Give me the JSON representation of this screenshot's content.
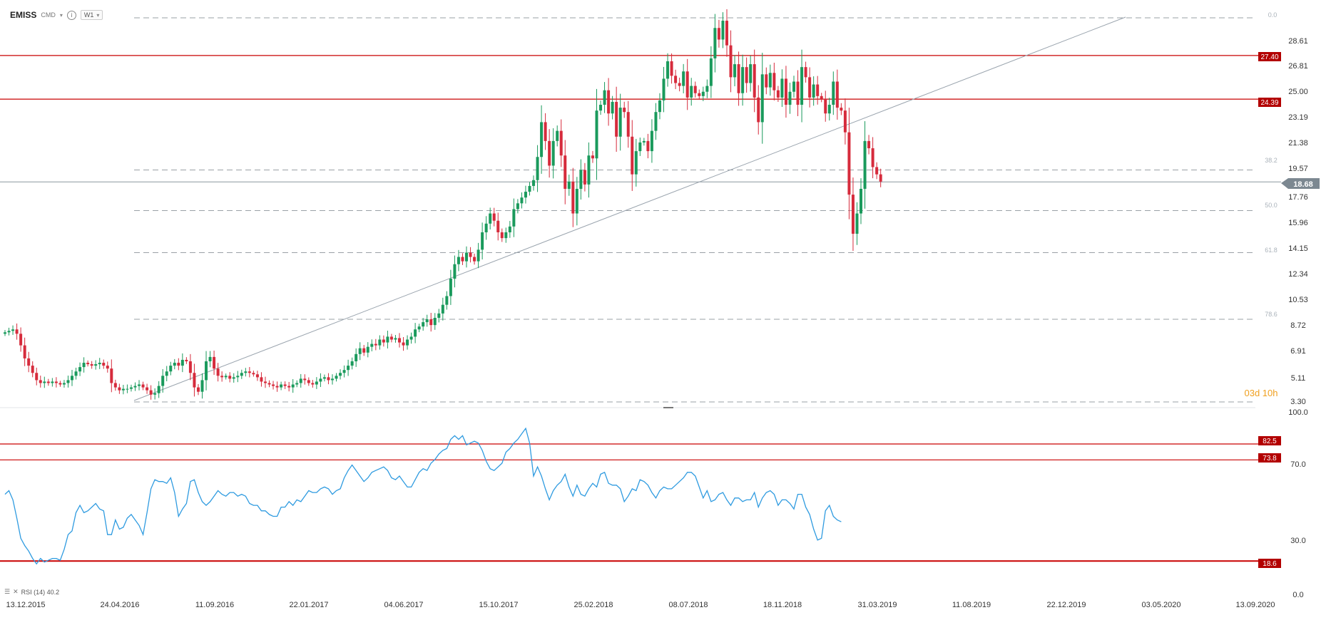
{
  "header": {
    "symbol": "EMISS",
    "market": "CMD",
    "info_icon": "info-icon",
    "timeframe": "W1",
    "dropdown_icon": "chevron-down-icon"
  },
  "price_axis": {
    "ticks": [
      "28.61",
      "26.81",
      "25.00",
      "23.19",
      "21.38",
      "19.57",
      "17.76",
      "15.96",
      "14.15",
      "12.34",
      "10.53",
      "8.72",
      "6.91",
      "5.11",
      "3.30"
    ],
    "top_label": "0.0",
    "current_price": "18.68",
    "countdown": "03d 10h"
  },
  "fib_labels": {
    "f38": "38.2",
    "f50": "50.0",
    "f618": "61.8",
    "f786": "78.6"
  },
  "horizontal_levels": {
    "resistance_1": "27.40",
    "resistance_2": "24.39"
  },
  "rsi": {
    "label": "RSI (14) 40.2",
    "axis_ticks": [
      "100.0",
      "70.0",
      "30.0",
      "0.0"
    ],
    "levels": [
      "82.5",
      "73.8",
      "18.6"
    ]
  },
  "date_axis": [
    "13.12.2015",
    "24.04.2016",
    "11.09.2016",
    "22.01.2017",
    "04.06.2017",
    "15.10.2017",
    "25.02.2018",
    "08.07.2018",
    "18.11.2018",
    "31.03.2019",
    "11.08.2019",
    "22.12.2019",
    "03.05.2020",
    "13.09.2020"
  ],
  "colors": {
    "up": "#1a9a5c",
    "down": "#d62b3c",
    "level_line": "#c90000",
    "rsi_line": "#2f9be0",
    "trend": "#9aa4ae"
  },
  "chart_data": [
    {
      "type": "candlestick",
      "title": "EMISS",
      "timeframe": "W1",
      "ylim": [
        3.3,
        30.4
      ],
      "weekly_close_series": [
        8.3,
        8.4,
        8.5,
        8.2,
        7.4,
        6.5,
        6.0,
        5.5,
        5.0,
        4.8,
        4.9,
        4.8,
        4.9,
        4.8,
        4.7,
        4.8,
        5.0,
        5.3,
        5.6,
        5.9,
        6.2,
        6.1,
        6.0,
        6.1,
        6.2,
        6.0,
        5.8,
        4.8,
        4.5,
        4.3,
        4.4,
        4.4,
        4.5,
        4.6,
        4.7,
        4.5,
        4.3,
        4.0,
        4.1,
        4.6,
        5.3,
        5.6,
        6.0,
        6.2,
        6.0,
        6.4,
        6.3,
        5.5,
        4.5,
        4.2,
        5.0,
        6.3,
        6.6,
        5.8,
        5.3,
        5.2,
        5.3,
        5.1,
        5.2,
        5.3,
        5.5,
        5.6,
        5.5,
        5.4,
        5.2,
        4.9,
        4.8,
        4.7,
        4.6,
        4.5,
        4.7,
        4.6,
        4.5,
        4.7,
        4.8,
        5.1,
        5.0,
        4.8,
        4.7,
        4.9,
        5.1,
        5.2,
        5.0,
        5.1,
        5.3,
        5.5,
        5.7,
        6.0,
        6.3,
        6.8,
        7.2,
        6.9,
        7.3,
        7.5,
        7.4,
        7.8,
        7.6,
        8.0,
        7.8,
        7.9,
        7.6,
        7.4,
        7.8,
        8.0,
        8.5,
        8.7,
        9.0,
        9.2,
        8.8,
        9.3,
        9.6,
        10.2,
        10.8,
        12.0,
        13.0,
        13.5,
        13.2,
        13.8,
        13.5,
        13.2,
        14.0,
        15.2,
        15.8,
        16.5,
        16.0,
        15.2,
        14.8,
        15.2,
        15.6,
        16.8,
        17.2,
        17.6,
        18.0,
        18.4,
        18.8,
        20.4,
        22.8,
        21.5,
        19.8,
        21.5,
        22.2,
        20.5,
        18.2,
        18.7,
        16.5,
        18.2,
        19.5,
        18.5,
        20.5,
        20.3,
        23.6,
        24.0,
        25.0,
        23.4,
        24.2,
        21.8,
        23.8,
        23.5,
        21.8,
        19.2,
        20.8,
        21.4,
        21.5,
        20.8,
        22.2,
        23.5,
        24.3,
        25.8,
        27.0,
        26.0,
        25.5,
        25.3,
        26.3,
        24.5,
        25.3,
        24.8,
        24.6,
        24.9,
        25.3,
        27.2,
        29.3,
        28.5,
        29.8,
        28.1,
        25.9,
        26.8,
        24.8,
        26.6,
        25.5,
        26.8,
        24.5,
        22.8,
        26.1,
        25.2,
        26.2,
        25.0,
        24.5,
        25.8,
        24.0,
        24.9,
        25.6,
        24.0,
        26.6,
        25.9,
        24.5,
        25.4,
        24.6,
        24.4,
        23.4,
        24.0,
        25.6,
        23.8,
        23.6,
        22.1,
        17.8,
        15.1,
        16.5,
        18.2,
        21.5,
        21.0,
        19.7,
        19.2,
        18.7
      ],
      "horizontal_lines": [
        27.4,
        24.39
      ],
      "fibonacci_levels": [
        {
          "label": "0.0",
          "price": 30.0
        },
        {
          "label": "38.2",
          "price": 19.5
        },
        {
          "label": "50.0",
          "price": 16.7
        },
        {
          "label": "61.8",
          "price": 13.8
        },
        {
          "label": "78.6",
          "price": 9.2
        }
      ],
      "last_price": 18.68
    },
    {
      "type": "line",
      "title": "RSI (14) 40.2",
      "ylim": [
        0,
        100
      ],
      "horizontal_lines": [
        82.5,
        73.8,
        18.6
      ],
      "values": [
        55,
        57,
        52,
        42,
        31,
        27,
        24,
        20,
        17,
        20,
        18,
        19,
        20,
        20,
        19,
        25,
        33,
        35,
        45,
        49,
        45,
        46,
        48,
        50,
        47,
        46,
        33,
        33,
        41,
        36,
        37,
        42,
        44,
        41,
        38,
        33,
        45,
        58,
        63,
        62,
        62,
        61,
        64,
        56,
        43,
        47,
        50,
        62,
        63,
        56,
        51,
        49,
        51,
        54,
        57,
        55,
        54,
        56,
        56,
        54,
        55,
        54,
        50,
        49,
        49,
        46,
        46,
        44,
        43,
        43,
        48,
        48,
        51,
        49,
        52,
        51,
        54,
        57,
        56,
        56,
        58,
        59,
        58,
        55,
        57,
        58,
        64,
        68,
        71,
        68,
        65,
        62,
        64,
        67,
        68,
        69,
        70,
        68,
        64,
        63,
        65,
        62,
        59,
        59,
        63,
        67,
        69,
        68,
        72,
        74,
        77,
        79,
        80,
        85,
        87,
        85,
        87,
        82,
        83,
        84,
        83,
        79,
        73,
        69,
        68,
        70,
        72,
        78,
        80,
        83,
        85,
        88,
        91,
        83,
        65,
        70,
        65,
        58,
        52,
        57,
        60,
        62,
        66,
        59,
        54,
        60,
        55,
        54,
        58,
        61,
        59,
        66,
        67,
        61,
        60,
        60,
        58,
        51,
        54,
        58,
        57,
        63,
        62,
        60,
        56,
        53,
        57,
        59,
        58,
        58,
        60,
        62,
        64,
        67,
        67,
        65,
        59,
        53,
        57,
        51,
        52,
        55,
        56,
        52,
        49,
        53,
        53,
        51,
        52,
        52,
        56,
        48,
        53,
        56,
        57,
        55,
        49,
        52,
        52,
        50,
        47,
        55,
        55,
        48,
        44,
        36,
        30,
        31,
        46,
        49,
        43,
        41,
        40
      ]
    }
  ]
}
